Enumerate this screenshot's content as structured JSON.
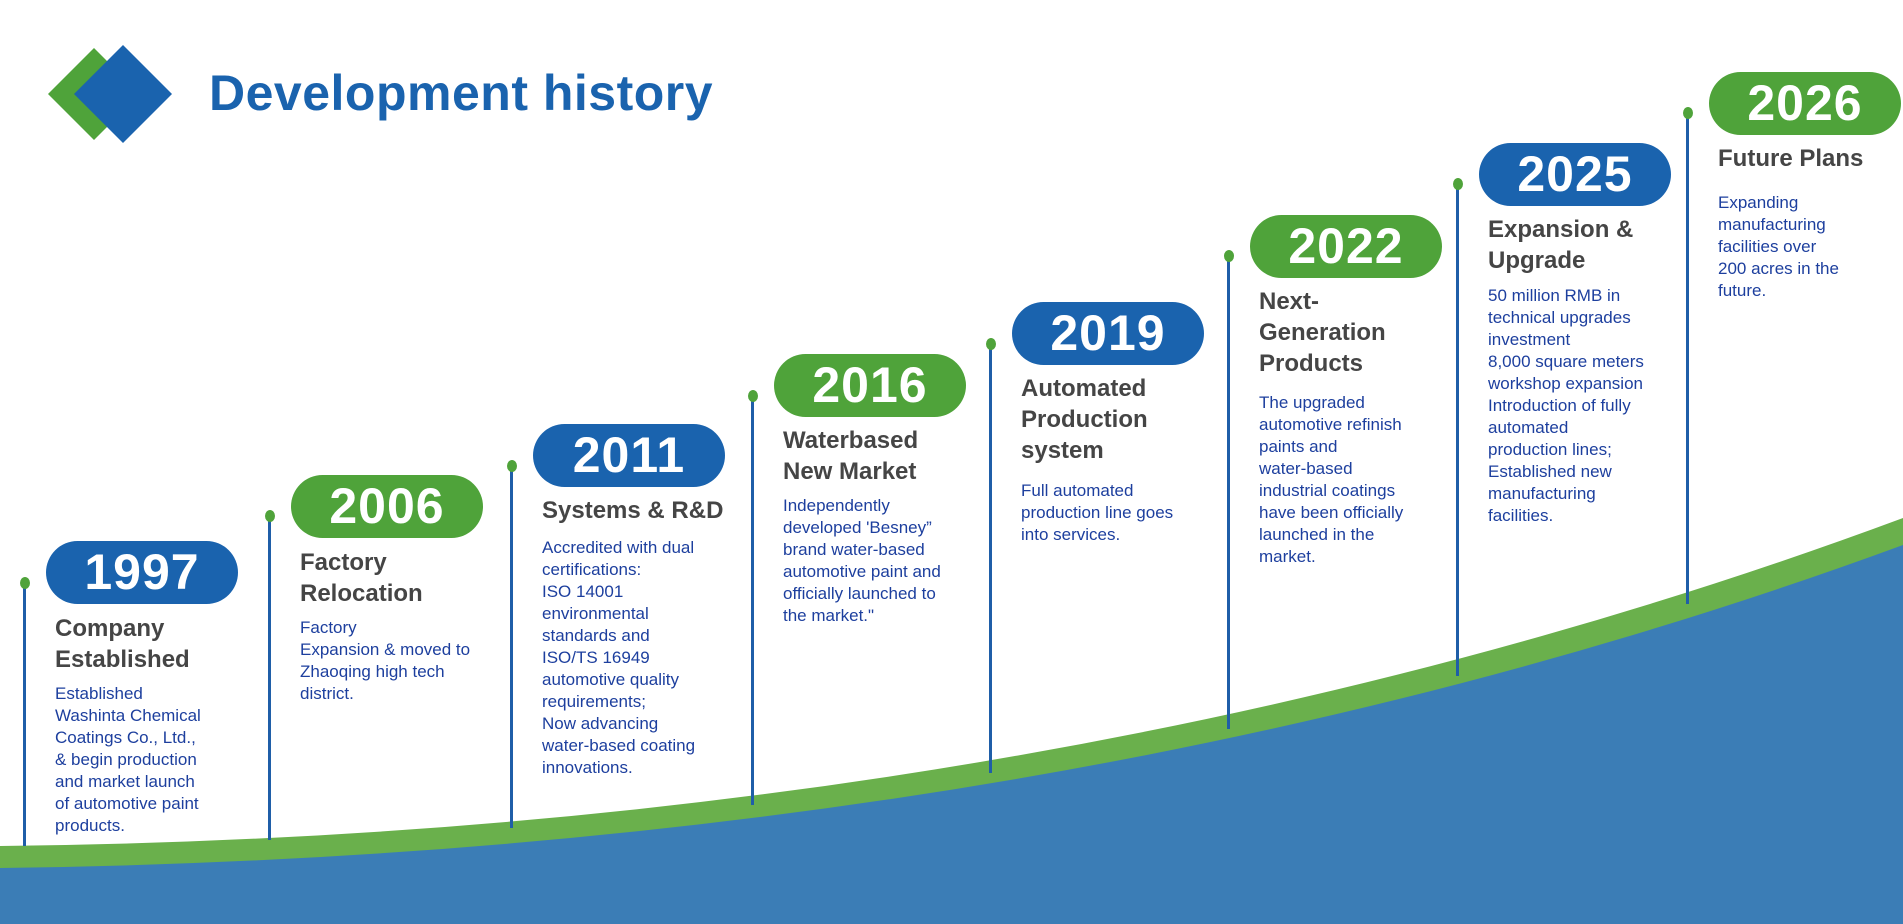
{
  "header": {
    "title": "Development history",
    "logo_icon": "double-diamond-logo"
  },
  "colors": {
    "blue": "#1a63ae",
    "green": "#4fa33a",
    "wave_blue": "#3b7db6",
    "wave_green": "#6ab04c"
  },
  "timeline": [
    {
      "year": "1997",
      "color": "blue",
      "title": "Company\nEstablished",
      "description": "Established\nWashinta Chemical\nCoatings Co., Ltd.,\n& begin production\nand market launch\nof automotive paint\nproducts."
    },
    {
      "year": "2006",
      "color": "green",
      "title": "Factory\nRelocation",
      "description": "Factory\nExpansion & moved to\nZhaoqing high tech\ndistrict."
    },
    {
      "year": "2011",
      "color": "blue",
      "title": "Systems & R&D",
      "description": "Accredited with dual\ncertifications:\nISO 14001\nenvironmental\nstandards and\nISO/TS 16949\nautomotive quality\nrequirements;\nNow advancing\nwater-based coating\ninnovations."
    },
    {
      "year": "2016",
      "color": "green",
      "title": "Waterbased\nNew Market",
      "description": "Independently\ndeveloped 'Besney”\nbrand water-based\nautomotive paint and\nofficially launched to\nthe market.\""
    },
    {
      "year": "2019",
      "color": "blue",
      "title": "Automated\nProduction\nsystem",
      "description": "Full automated\nproduction line goes\ninto services."
    },
    {
      "year": "2022",
      "color": "green",
      "title": "Next-\nGeneration\nProducts",
      "description": "The upgraded\nautomotive refinish\npaints and\nwater-based\nindustrial coatings\nhave been officially\nlaunched in the\nmarket."
    },
    {
      "year": "2025",
      "color": "blue",
      "title": "Expansion &\nUpgrade",
      "description": "50 million RMB in\ntechnical upgrades\ninvestment\n8,000 square meters\nworkshop expansion\nIntroduction of fully\nautomated\nproduction lines;\nEstablished new\nmanufacturing\nfacilities."
    },
    {
      "year": "2026",
      "color": "green",
      "title": "Future Plans",
      "description": "Expanding\nmanufacturing\nfacilities over\n200 acres in the\nfuture."
    }
  ]
}
